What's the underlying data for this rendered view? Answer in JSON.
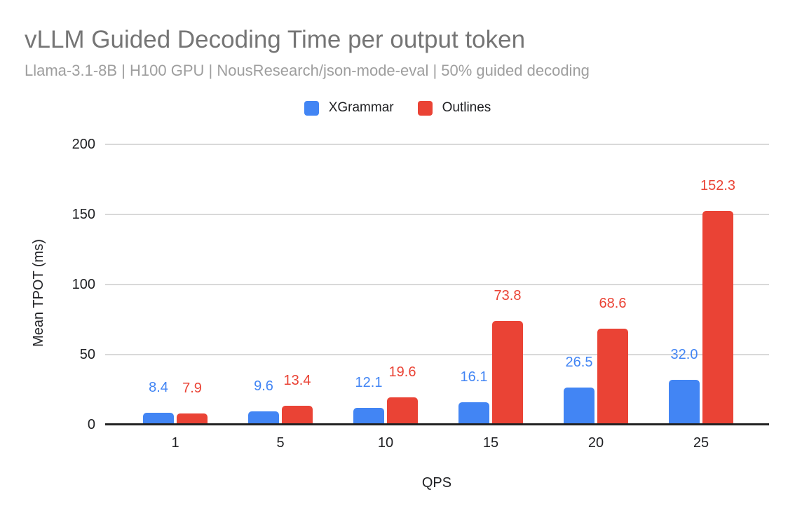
{
  "chart_data": {
    "type": "bar",
    "title": "vLLM Guided Decoding Time per output token",
    "subtitle": "Llama-3.1-8B | H100 GPU | NousResearch/json-mode-eval | 50% guided decoding",
    "xlabel": "QPS",
    "ylabel": "Mean TPOT (ms)",
    "categories": [
      "1",
      "5",
      "10",
      "15",
      "20",
      "25"
    ],
    "series": [
      {
        "name": "XGrammar",
        "color": "#4285F4",
        "values": [
          8.4,
          9.6,
          12.1,
          16.1,
          26.5,
          32.0
        ]
      },
      {
        "name": "Outlines",
        "color": "#EA4335",
        "values": [
          7.9,
          13.4,
          19.6,
          73.8,
          68.6,
          152.3
        ]
      }
    ],
    "ylim": [
      0,
      200
    ],
    "yticks": [
      0,
      50,
      100,
      150,
      200
    ],
    "grid": true,
    "legend_position": "top",
    "value_labels_decimals": 1
  },
  "style": {
    "title_color": "#757575",
    "subtitle_color": "#9e9e9e",
    "gridline_color": "#d9d9d9",
    "axis_line_color": "#222222",
    "tick_text_color": "#202124",
    "background": "#ffffff"
  }
}
